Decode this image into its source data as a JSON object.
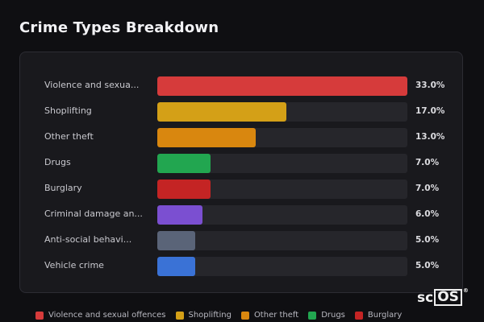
{
  "title": "Crime Types Breakdown",
  "colors": {
    "background": "#0f0f12",
    "card": "#19191d",
    "track": "#26262b"
  },
  "chart_data": {
    "type": "bar",
    "orientation": "horizontal",
    "title": "Crime Types Breakdown",
    "xlim": [
      0,
      33
    ],
    "grid": false,
    "legend_position": "bottom",
    "categories": [
      {
        "label": "Violence and sexua...",
        "full_name": "Violence and sexual offences",
        "value": 33.0,
        "display": "33.0%",
        "color": "#d63b3b"
      },
      {
        "label": "Shoplifting",
        "full_name": "Shoplifting",
        "value": 17.0,
        "display": "17.0%",
        "color": "#d4a017"
      },
      {
        "label": "Other theft",
        "full_name": "Other theft",
        "value": 13.0,
        "display": "13.0%",
        "color": "#d9870f"
      },
      {
        "label": "Drugs",
        "full_name": "Drugs",
        "value": 7.0,
        "display": "7.0%",
        "color": "#22a650"
      },
      {
        "label": "Burglary",
        "full_name": "Burglary",
        "value": 7.0,
        "display": "7.0%",
        "color": "#c42424"
      },
      {
        "label": "Criminal damage an...",
        "full_name": "Criminal damage and arson",
        "value": 6.0,
        "display": "6.0%",
        "color": "#7b4fd1"
      },
      {
        "label": "Anti-social behavi...",
        "full_name": "Anti-social behaviour",
        "value": 5.0,
        "display": "5.0%",
        "color": "#5a6478"
      },
      {
        "label": "Vehicle crime",
        "full_name": "Vehicle crime",
        "value": 5.0,
        "display": "5.0%",
        "color": "#3a72d6"
      }
    ],
    "legend": [
      {
        "label": "Violence and sexual offences",
        "color": "#d63b3b"
      },
      {
        "label": "Shoplifting",
        "color": "#d4a017"
      },
      {
        "label": "Other theft",
        "color": "#d9870f"
      },
      {
        "label": "Drugs",
        "color": "#22a650"
      },
      {
        "label": "Burglary",
        "color": "#c42424"
      }
    ]
  },
  "logo": {
    "left": "sc",
    "box": "OS",
    "mark": "®"
  }
}
